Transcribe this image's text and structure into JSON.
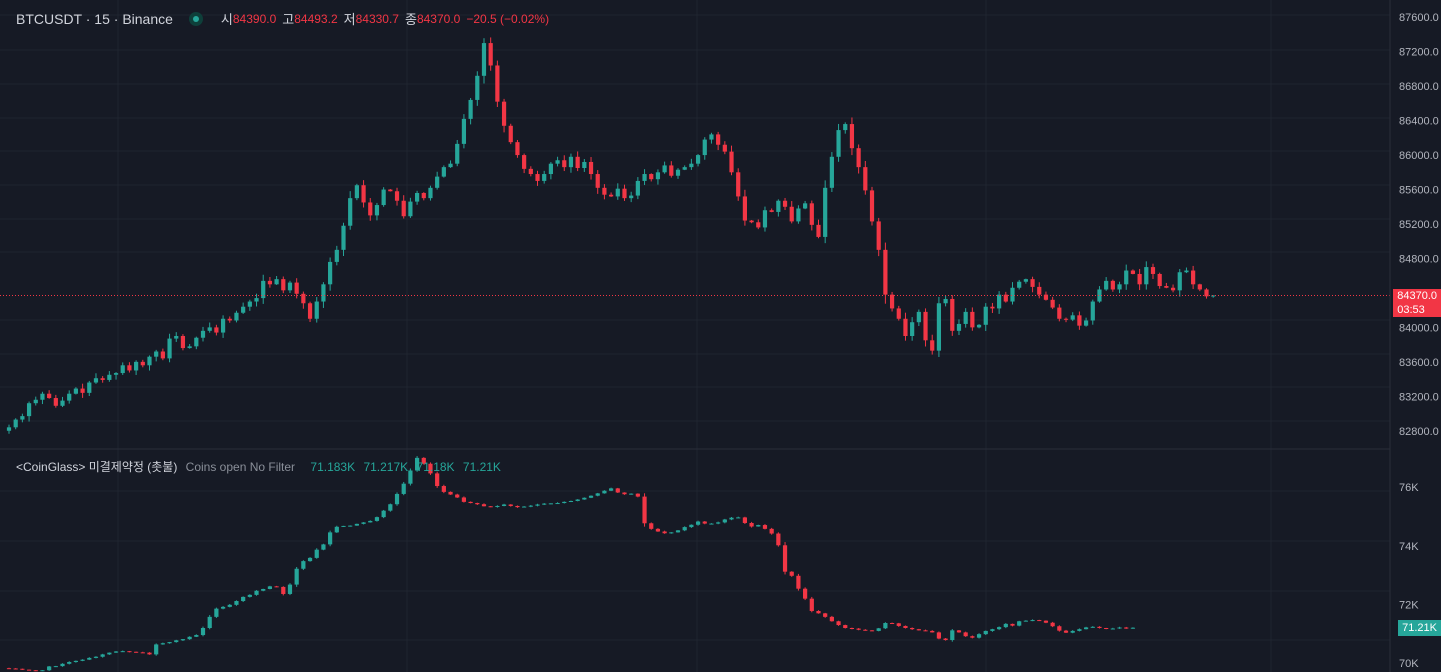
{
  "header": {
    "symbol": "BTCUSDT · 15 · Binance",
    "open_label": "시",
    "open": "84390.0",
    "high_label": "고",
    "high": "84493.2",
    "low_label": "저",
    "low": "84330.7",
    "close_label": "종",
    "close": "84370.0",
    "change": "−20.5 (−0.02%)"
  },
  "indicator": {
    "name": "<CoinGlass> 미결제약정 (촛불)",
    "desc": "Coins open No Filter",
    "values": [
      "71.183K",
      "71.217K",
      "71.18K",
      "71.21K"
    ]
  },
  "price_axis": {
    "ticks": [
      "87600.0",
      "87200.0",
      "86800.0",
      "86400.0",
      "86000.0",
      "85600.0",
      "85200.0",
      "84800.0",
      "84000.0",
      "83600.0",
      "83200.0",
      "82800.0"
    ],
    "last_price": "84370.0",
    "countdown": "03:53"
  },
  "oi_axis": {
    "ticks": [
      "76K",
      "74K",
      "72K",
      "70K"
    ],
    "last_value": "71.21K"
  },
  "colors": {
    "up": "#26a69a",
    "down": "#f23645",
    "background": "#161a25",
    "grid": "#232733"
  },
  "chart_data": [
    {
      "type": "candlestick",
      "title": "BTCUSDT · 15 · Binance",
      "ylim": [
        82600,
        87800
      ],
      "close_series": [
        82840,
        82930,
        82970,
        83120,
        83160,
        83230,
        83180,
        83090,
        83150,
        83230,
        83290,
        83240,
        83360,
        83410,
        83390,
        83450,
        83470,
        83560,
        83500,
        83600,
        83560,
        83660,
        83720,
        83640,
        83870,
        83900,
        83760,
        83780,
        83880,
        83960,
        84000,
        83940,
        84100,
        84080,
        84170,
        84240,
        84300,
        84340,
        84540,
        84500,
        84560,
        84430,
        84520,
        84390,
        84280,
        84100,
        84300,
        84500,
        84760,
        84900,
        85180,
        85500,
        85650,
        85450,
        85300,
        85420,
        85600,
        85580,
        85470,
        85290,
        85460,
        85560,
        85500,
        85620,
        85750,
        85860,
        85900,
        86130,
        86420,
        86640,
        86920,
        87300,
        87040,
        86620,
        86340,
        86150,
        86000,
        85840,
        85780,
        85700,
        85780,
        85900,
        85940,
        85860,
        85980,
        85850,
        85920,
        85780,
        85620,
        85540,
        85520,
        85610,
        85500,
        85530,
        85700,
        85780,
        85720,
        85800,
        85880,
        85760,
        85830,
        85860,
        85900,
        86000,
        86180,
        86240,
        86120,
        86040,
        85800,
        85520,
        85240,
        85220,
        85160,
        85360,
        85340,
        85470,
        85400,
        85230,
        85380,
        85440,
        85190,
        85050,
        85620,
        85980,
        86290,
        86360,
        86080,
        85860,
        85590,
        85230,
        84900,
        84380,
        84220,
        84100,
        83900,
        84060,
        84180,
        83850,
        83730,
        84280,
        84330,
        83960,
        84040,
        84180,
        84000,
        84030,
        84240,
        84220,
        84380,
        84300,
        84460,
        84530,
        84560,
        84470,
        84380,
        84320,
        84230,
        84100,
        84090,
        84140,
        84020,
        84080,
        84300,
        84440,
        84540,
        84440,
        84500,
        84660,
        84620,
        84500,
        84700,
        84620,
        84480,
        84460,
        84430,
        84640,
        84660,
        84500,
        84440,
        84360,
        84370
      ],
      "last_price": 84370.0
    },
    {
      "type": "candlestick",
      "title": "<CoinGlass> 미결제약정 (촛불)",
      "ylim": [
        69700,
        77200
      ],
      "close_series": [
        69820,
        69810,
        69780,
        69760,
        69740,
        69760,
        69890,
        69900,
        69980,
        70040,
        70080,
        70120,
        70180,
        70220,
        70300,
        70360,
        70400,
        70410,
        70390,
        70370,
        70360,
        70300,
        70640,
        70680,
        70720,
        70780,
        70820,
        70900,
        70960,
        71200,
        71580,
        71860,
        71920,
        71990,
        72120,
        72260,
        72330,
        72470,
        72530,
        72620,
        72600,
        72360,
        72680,
        73220,
        73480,
        73590,
        73870,
        74050,
        74460,
        74650,
        74680,
        74690,
        74750,
        74800,
        74850,
        74980,
        75200,
        75420,
        75770,
        76120,
        76570,
        77000,
        76800,
        76470,
        76040,
        75840,
        75750,
        75650,
        75500,
        75460,
        75420,
        75350,
        75330,
        75360,
        75410,
        75360,
        75320,
        75340,
        75370,
        75410,
        75440,
        75450,
        75460,
        75500,
        75530,
        75580,
        75640,
        75710,
        75790,
        75880,
        75960,
        75820,
        75760,
        75780,
        75680,
        74770,
        74580,
        74490,
        74430,
        74460,
        74530,
        74640,
        74720,
        74830,
        74760,
        74760,
        74800,
        74900,
        74960,
        74970,
        74780,
        74660,
        74710,
        74580,
        74420,
        74020,
        73120,
        72980,
        72540,
        72200,
        71780,
        71700,
        71580,
        71430,
        71300,
        71200,
        71180,
        71140,
        71120,
        71100,
        71190,
        71370,
        71360,
        71270,
        71200,
        71160,
        71120,
        71100,
        71050,
        70840,
        70790,
        71120,
        71050,
        70920,
        70870,
        70990,
        71100,
        71160,
        71230,
        71340,
        71280,
        71430,
        71450,
        71470,
        71450,
        71380,
        71260,
        71110,
        71040,
        71100,
        71160,
        71220,
        71240,
        71200,
        71180,
        71183,
        71217,
        71180,
        71210
      ],
      "last_value": 71210
    }
  ]
}
